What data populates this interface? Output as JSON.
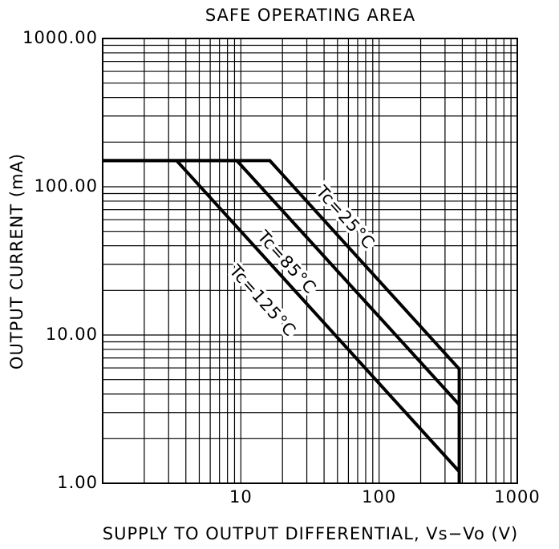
{
  "chart_data": {
    "type": "line",
    "title": "SAFE OPERATING AREA",
    "xlabel": "SUPPLY TO OUTPUT DIFFERENTIAL, Vs−Vo (V)",
    "ylabel": "OUTPUT CURRENT (mA)",
    "xscale": "log",
    "yscale": "log",
    "grid": true,
    "xlim": [
      1,
      1000
    ],
    "ylim": [
      1,
      1000
    ],
    "xticks": [
      10,
      100,
      1000
    ],
    "yticks": [
      {
        "value": 1,
        "label": "1.00"
      },
      {
        "value": 10,
        "label": "10.00"
      },
      {
        "value": 100,
        "label": "100.00"
      },
      {
        "value": 1000,
        "label": "1000.00"
      }
    ],
    "series": [
      {
        "name": "Tc=25°C",
        "color": "#000000",
        "x": [
          1,
          16.2,
          380,
          380
        ],
        "values": [
          150,
          150,
          5.9,
          1
        ]
      },
      {
        "name": "Tc=85°C",
        "color": "#000000",
        "x": [
          1,
          9.35,
          380
        ],
        "values": [
          150,
          150,
          3.39
        ]
      },
      {
        "name": "Tc=125°C",
        "color": "#000000",
        "x": [
          3.43,
          380
        ],
        "values": [
          150,
          1.2
        ]
      }
    ]
  }
}
